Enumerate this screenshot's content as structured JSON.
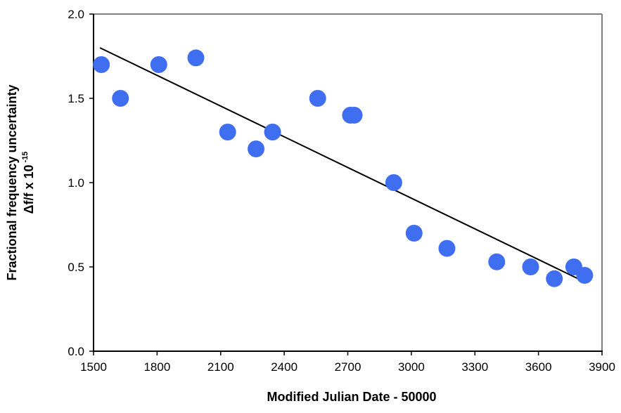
{
  "chart_data": {
    "type": "scatter",
    "title": "",
    "xlabel": "Modified Julian Date - 50000",
    "ylabel_line1": "Fractional frequency uncertainty",
    "ylabel_line2_main": "Δf/f x 10",
    "ylabel_line2_exp": "-15",
    "xlim": [
      1500,
      3900
    ],
    "ylim": [
      0.0,
      2.0
    ],
    "xticks": [
      "1500",
      "1800",
      "2100",
      "2400",
      "2700",
      "3000",
      "3300",
      "3600",
      "3900"
    ],
    "yticks": [
      "0.0",
      "0.5",
      "1.0",
      "1.5",
      "2.0"
    ],
    "grid": false,
    "legend": "none",
    "series": [
      {
        "x": [
          1537,
          1627,
          1808,
          1983,
          2133,
          2267,
          2345,
          2558,
          2713,
          2730,
          2917,
          3013,
          3168,
          3403,
          3563,
          3675,
          3767,
          3818
        ],
        "y": [
          1.7,
          1.5,
          1.7,
          1.74,
          1.3,
          1.2,
          1.3,
          1.5,
          1.4,
          1.4,
          1.0,
          0.7,
          0.61,
          0.53,
          0.5,
          0.43,
          0.5,
          0.45
        ],
        "color": "#3f6ff0"
      }
    ],
    "trendline": {
      "x": [
        1530,
        3820
      ],
      "y": [
        1.8,
        0.41
      ],
      "color": "#000000"
    },
    "frame_color": "#808080",
    "axis_color": "#000000"
  }
}
